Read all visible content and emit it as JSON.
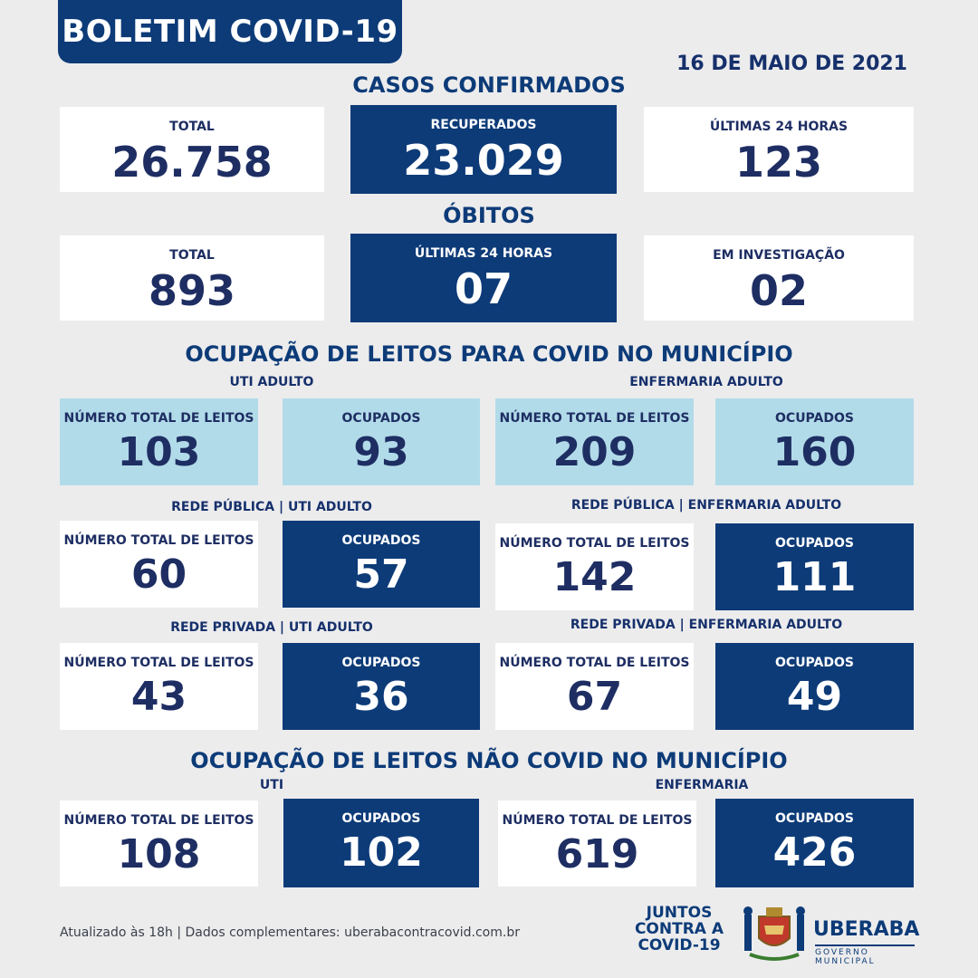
{
  "header": {
    "title": "BOLETIM COVID-19",
    "date": "16 DE MAIO DE 2021"
  },
  "casos": {
    "title": "CASOS CONFIRMADOS",
    "total_label": "TOTAL",
    "total_value": "26.758",
    "recuperados_label": "RECUPERADOS",
    "recuperados_value": "23.029",
    "ultimas_label": "ÚLTIMAS 24 HORAS",
    "ultimas_value": "123"
  },
  "obitos": {
    "title": "ÓBITOS",
    "total_label": "TOTAL",
    "total_value": "893",
    "ultimas_label": "ÚLTIMAS 24 HORAS",
    "ultimas_value": "07",
    "investigacao_label": "EM INVESTIGAÇÃO",
    "investigacao_value": "02"
  },
  "covid": {
    "title": "OCUPAÇÃO DE LEITOS PARA COVID NO MUNICÍPIO",
    "uti_label": "UTI ADULTO",
    "enf_label": "ENFERMARIA ADULTO",
    "total_label": "NÚMERO TOTAL DE LEITOS",
    "ocupados_label": "OCUPADOS",
    "uti": {
      "total": "103",
      "ocupados": "93"
    },
    "enf": {
      "total": "209",
      "ocupados": "160"
    },
    "publica_uti_label": "REDE PÚBLICA | UTI ADULTO",
    "publica_uti": {
      "total": "60",
      "ocupados": "57"
    },
    "publica_enf_label": "REDE PÚBLICA | ENFERMARIA ADULTO",
    "publica_enf": {
      "total": "142",
      "ocupados": "111"
    },
    "privada_uti_label": "REDE PRIVADA | UTI ADULTO",
    "privada_uti": {
      "total": "43",
      "ocupados": "36"
    },
    "privada_enf_label": "REDE PRIVADA | ENFERMARIA ADULTO",
    "privada_enf": {
      "total": "67",
      "ocupados": "49"
    }
  },
  "nao_covid": {
    "title": "OCUPAÇÃO DE LEITOS NÃO COVID NO MUNICÍPIO",
    "uti_label": "UTI",
    "enf_label": "ENFERMARIA",
    "uti": {
      "total": "108",
      "ocupados": "102"
    },
    "enf": {
      "total": "619",
      "ocupados": "426"
    }
  },
  "footer": {
    "note": "Atualizado às 18h | Dados complementares: uberabacontracovid.com.br",
    "juntos_1": "JUNTOS",
    "juntos_2": "CONTRA A",
    "juntos_3": "COVID-19",
    "city": "UBERABA",
    "gov": "GOVERNO MUNICIPAL",
    "crest_icon": "municipal-crest-icon"
  },
  "colors": {
    "navy": "#0d3b78",
    "light_blue": "#b2dbe9",
    "text_dark": "#1e2e63",
    "background": "#ececed"
  }
}
